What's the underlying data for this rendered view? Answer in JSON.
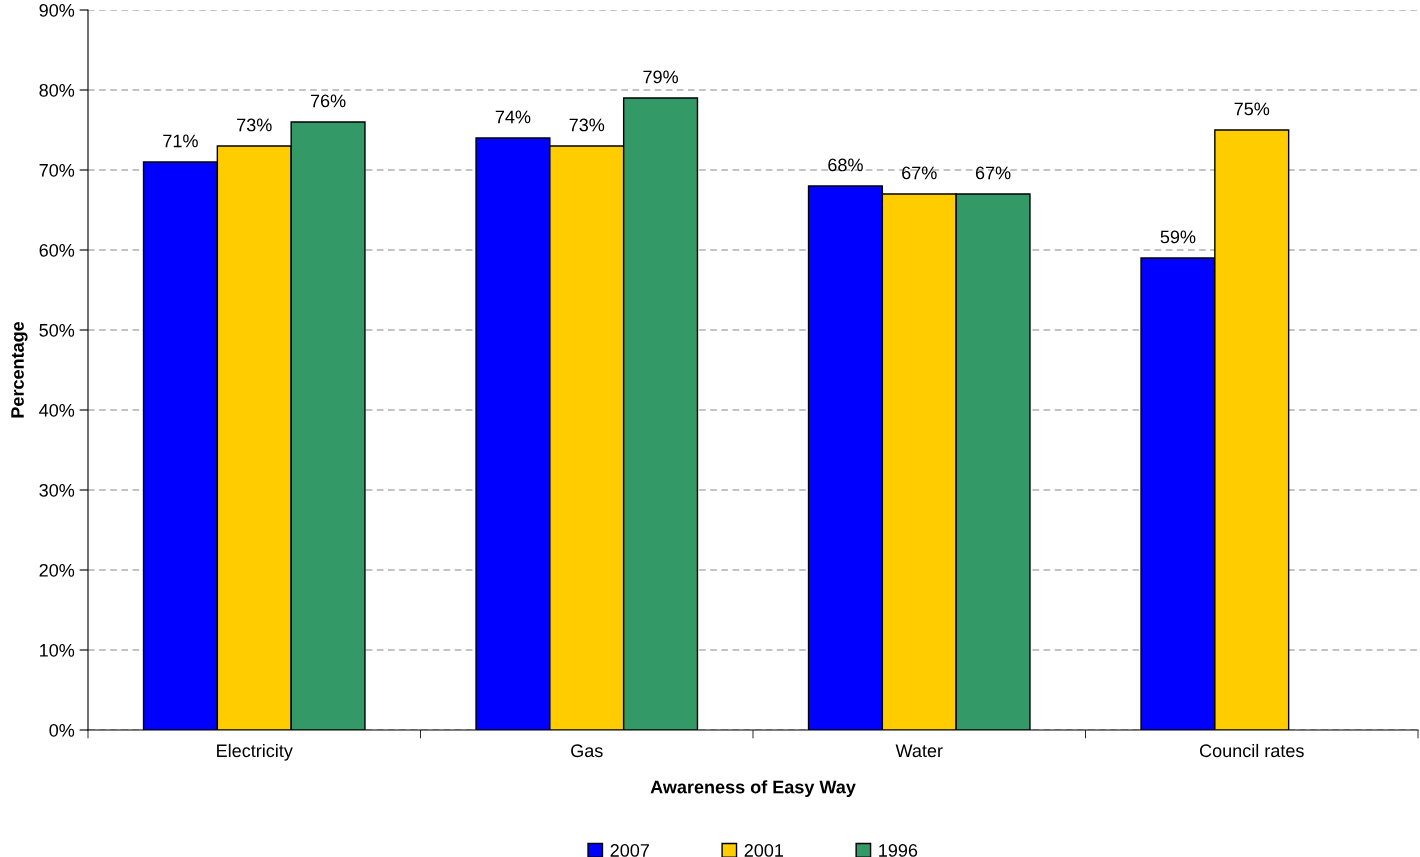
{
  "chart_data": {
    "type": "bar",
    "xlabel": "Awareness of Easy Way",
    "ylabel": "Percentage",
    "categories": [
      "Electricity",
      "Gas",
      "Water",
      "Council rates"
    ],
    "series": [
      {
        "name": "2007",
        "color": "#0000ff",
        "values": [
          71,
          74,
          68,
          59
        ],
        "value_labels": [
          "71%",
          "74%",
          "68%",
          "59%"
        ]
      },
      {
        "name": "2001",
        "color": "#ffcc00",
        "values": [
          73,
          73,
          67,
          75
        ],
        "value_labels": [
          "73%",
          "73%",
          "67%",
          "75%"
        ]
      },
      {
        "name": "1996",
        "color": "#339966",
        "values": [
          76,
          79,
          67,
          null
        ],
        "value_labels": [
          "76%",
          "79%",
          "67%",
          null
        ]
      }
    ],
    "ylim": [
      0,
      90
    ],
    "yticks": [
      {
        "value": 0,
        "label": "0%"
      },
      {
        "value": 10,
        "label": "10%"
      },
      {
        "value": 20,
        "label": "20%"
      },
      {
        "value": 30,
        "label": "30%"
      },
      {
        "value": 40,
        "label": "40%"
      },
      {
        "value": 50,
        "label": "50%"
      },
      {
        "value": 60,
        "label": "60%"
      },
      {
        "value": 70,
        "label": "70%"
      },
      {
        "value": 80,
        "label": "80%"
      },
      {
        "value": 90,
        "label": "90%"
      }
    ],
    "grid": "y",
    "legend": "bottom"
  }
}
